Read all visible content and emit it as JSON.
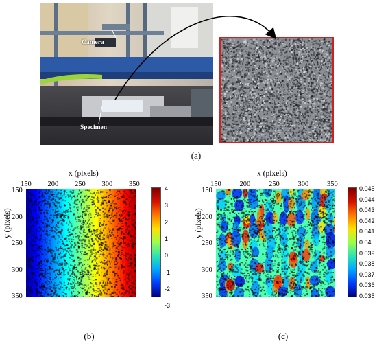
{
  "figure": {
    "panel_a": {
      "caption": "(a)",
      "photo_labels": {
        "camera": "Camera",
        "specimen": "Specimen"
      }
    },
    "panel_b": {
      "caption": "(b)",
      "xlabel": "x (pixels)",
      "ylabel": "y (pixels)",
      "xticks": [
        "150",
        "200",
        "250",
        "300",
        "350"
      ],
      "yticks": [
        "150",
        "200",
        "250",
        "300",
        "350"
      ],
      "colorbar_ticks": [
        "4",
        "3",
        "2",
        "1",
        "0",
        "-1",
        "-2",
        "-3"
      ]
    },
    "panel_c": {
      "caption": "(c)",
      "xlabel": "x (pixels)",
      "ylabel": "y (pixels)",
      "xticks": [
        "150",
        "200",
        "250",
        "300",
        "350"
      ],
      "yticks": [
        "150",
        "200",
        "250",
        "300",
        "350"
      ],
      "colorbar_ticks": [
        "0.045",
        "0.044",
        "0.043",
        "0.042",
        "0.041",
        "0.04",
        "0.039",
        "0.038",
        "0.037",
        "0.036",
        "0.035"
      ]
    },
    "colors": {
      "inset_border": "#d02020",
      "axis": "#000000"
    }
  }
}
